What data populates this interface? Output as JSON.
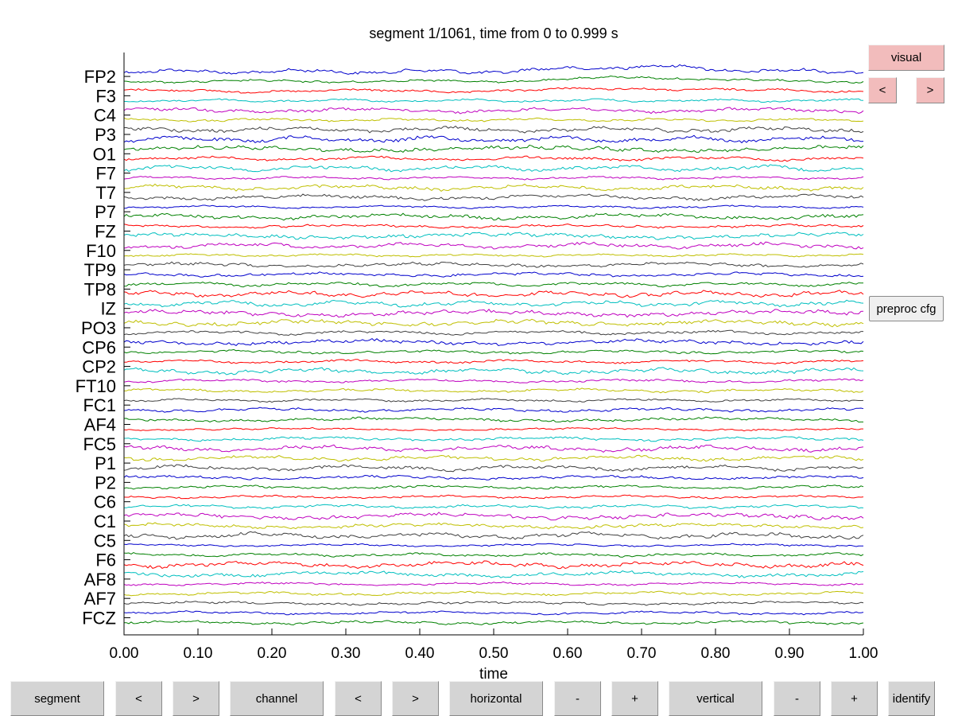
{
  "title": "segment 1/1061, time from 0 to 0.999 s",
  "colors": {
    "trace_cycle": [
      "#0000cc",
      "#008000",
      "#ff0000",
      "#00bfbf",
      "#bf00bf",
      "#bfbf00",
      "#404040"
    ],
    "button": "#d4d4d4",
    "button_highlight": "#f2bcbc"
  },
  "channel_labels": [
    "FP2",
    "F3",
    "C4",
    "P3",
    "O1",
    "F7",
    "T7",
    "P7",
    "FZ",
    "F10",
    "TP9",
    "TP8",
    "IZ",
    "PO3",
    "CP6",
    "CP2",
    "FT10",
    "FC1",
    "AF4",
    "FC5",
    "P1",
    "P2",
    "C6",
    "C1",
    "C5",
    "F6",
    "AF8",
    "AF7",
    "FCZ"
  ],
  "chart_data": {
    "type": "line",
    "xlabel": "time",
    "xlim": [
      0,
      1
    ],
    "x_ticks": [
      "0.00",
      "0.10",
      "0.20",
      "0.30",
      "0.40",
      "0.50",
      "0.60",
      "0.70",
      "0.80",
      "0.90",
      "1.00"
    ],
    "trace_count": 58
  },
  "side_buttons": {
    "visual": "visual",
    "prev": "<",
    "next": ">",
    "preproc": "preproc cfg"
  },
  "bottom_buttons": [
    "segment",
    "<",
    ">",
    "channel",
    "<",
    ">",
    "horizontal",
    "-",
    "+",
    "vertical",
    "-",
    "+",
    "identify"
  ]
}
